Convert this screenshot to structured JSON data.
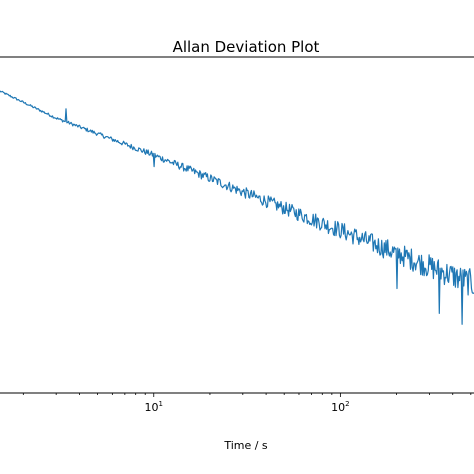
{
  "chart_data": {
    "type": "line",
    "title": "Allan Deviation Plot",
    "xlabel": "Time / s",
    "ylabel": "",
    "xscale": "log",
    "yscale": "log",
    "xlim": [
      1.5,
      520
    ],
    "ylim": [
      0.00045,
      0.3
    ],
    "x_ticks": [
      {
        "value": 10,
        "base": "10",
        "exp": "1"
      },
      {
        "value": 100,
        "base": "10",
        "exp": "2"
      }
    ],
    "grid": false,
    "legend": "none",
    "line_color": "#1f77b4",
    "series": [
      {
        "trend_points": [
          {
            "x": 1.5,
            "y": 0.155
          },
          {
            "x": 3,
            "y": 0.092
          },
          {
            "x": 10,
            "y": 0.045
          },
          {
            "x": 30,
            "y": 0.022
          },
          {
            "x": 100,
            "y": 0.0105
          },
          {
            "x": 300,
            "y": 0.0052
          },
          {
            "x": 520,
            "y": 0.0037
          }
        ],
        "spikes": [
          {
            "x": 3.4,
            "y": 0.11
          },
          {
            "x": 10,
            "y": 0.036
          },
          {
            "x": 200,
            "y": 0.0034
          },
          {
            "x": 340,
            "y": 0.0021
          },
          {
            "x": 450,
            "y": 0.0017
          }
        ]
      }
    ]
  }
}
